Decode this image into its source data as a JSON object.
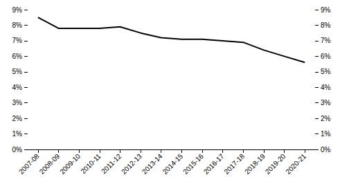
{
  "chart_data": {
    "type": "line",
    "categories": [
      "2007-08",
      "2008-09",
      "2009-10",
      "2010-11",
      "2011-12",
      "2012-13",
      "2013-14",
      "2014-15",
      "2015-16",
      "2016-17",
      "2017-18",
      "2018-19",
      "2019-20",
      "2020-21"
    ],
    "values": [
      8.5,
      7.8,
      7.8,
      7.8,
      7.9,
      7.5,
      7.2,
      7.1,
      7.1,
      7.0,
      6.9,
      6.4,
      6.0,
      5.6
    ],
    "color": "#000000",
    "ylim": [
      0,
      9
    ],
    "yticks": [
      {
        "value": 0,
        "label": "0%"
      },
      {
        "value": 1,
        "label": "1%"
      },
      {
        "value": 2,
        "label": "2%"
      },
      {
        "value": 3,
        "label": "3%"
      },
      {
        "value": 4,
        "label": "4%"
      },
      {
        "value": 5,
        "label": "5%"
      },
      {
        "value": 6,
        "label": "6%"
      },
      {
        "value": 7,
        "label": "7%"
      },
      {
        "value": 8,
        "label": "8%"
      },
      {
        "value": 9,
        "label": "9%"
      }
    ],
    "y2lim": [
      0,
      9
    ],
    "y2ticks": [
      {
        "value": 0,
        "label": "0%"
      },
      {
        "value": 1,
        "label": "1%"
      },
      {
        "value": 2,
        "label": "2%"
      },
      {
        "value": 3,
        "label": "3%"
      },
      {
        "value": 4,
        "label": "4%"
      },
      {
        "value": 5,
        "label": "5%"
      },
      {
        "value": 6,
        "label": "6%"
      },
      {
        "value": 7,
        "label": "7%"
      },
      {
        "value": 8,
        "label": "8%"
      },
      {
        "value": 9,
        "label": "9%"
      }
    ],
    "grid": false
  }
}
